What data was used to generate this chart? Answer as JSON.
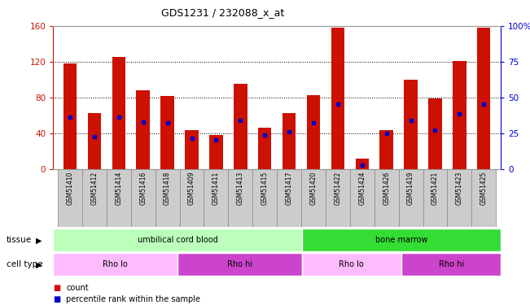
{
  "title": "GDS1231 / 232088_x_at",
  "samples": [
    "GSM51410",
    "GSM51412",
    "GSM51414",
    "GSM51416",
    "GSM51418",
    "GSM51409",
    "GSM51411",
    "GSM51413",
    "GSM51415",
    "GSM51417",
    "GSM51420",
    "GSM51422",
    "GSM51424",
    "GSM51426",
    "GSM51419",
    "GSM51421",
    "GSM51423",
    "GSM51425"
  ],
  "bar_heights": [
    118,
    63,
    125,
    88,
    82,
    44,
    38,
    95,
    46,
    63,
    83,
    158,
    12,
    44,
    100,
    79,
    121,
    158
  ],
  "blue_markers": [
    58,
    36,
    58,
    53,
    52,
    35,
    33,
    55,
    38,
    42,
    52,
    73,
    5,
    40,
    55,
    44,
    62,
    73
  ],
  "bar_color": "#cc1100",
  "marker_color": "#0000cc",
  "ylim_left": [
    0,
    160
  ],
  "ylim_right": [
    0,
    100
  ],
  "yticks_left": [
    0,
    40,
    80,
    120,
    160
  ],
  "yticks_right": [
    0,
    25,
    50,
    75,
    100
  ],
  "yticklabels_right": [
    "0",
    "25",
    "50",
    "75",
    "100%"
  ],
  "tissue_groups": [
    {
      "label": "umbilical cord blood",
      "start": 0,
      "end": 10,
      "color": "#bbffbb"
    },
    {
      "label": "bone marrow",
      "start": 10,
      "end": 18,
      "color": "#33dd33"
    }
  ],
  "cell_type_groups": [
    {
      "label": "Rho lo",
      "start": 0,
      "end": 5,
      "color": "#ffbbff"
    },
    {
      "label": "Rho hi",
      "start": 5,
      "end": 10,
      "color": "#cc44cc"
    },
    {
      "label": "Rho lo",
      "start": 10,
      "end": 14,
      "color": "#ffbbff"
    },
    {
      "label": "Rho hi",
      "start": 14,
      "end": 18,
      "color": "#cc44cc"
    }
  ],
  "legend_count_color": "#cc1100",
  "legend_marker_color": "#0000cc",
  "left_yaxis_color": "#cc1100",
  "right_yaxis_color": "#0000cc",
  "background_color": "#ffffff",
  "bar_width": 0.55,
  "xtick_bg": "#cccccc",
  "xtick_border": "#888888"
}
